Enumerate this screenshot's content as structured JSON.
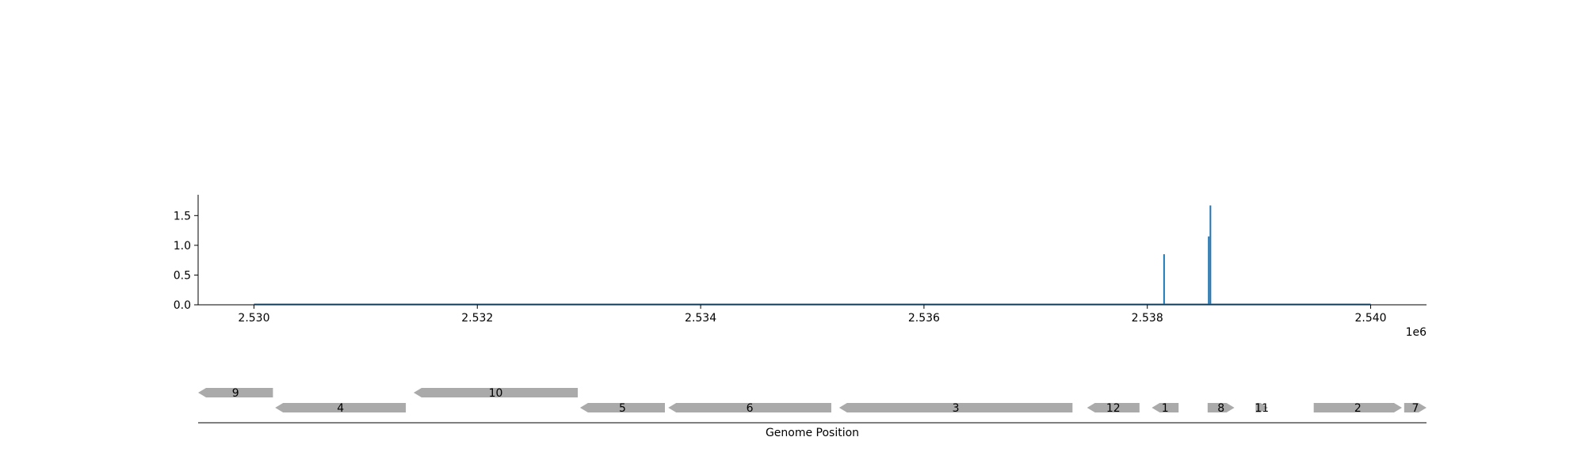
{
  "chart_data": [
    {
      "type": "line",
      "title": "",
      "xlabel": "",
      "ylabel": "",
      "xlim": [
        2529500,
        2540500
      ],
      "ylim": [
        0,
        1.85
      ],
      "x_offset_label": "1e6",
      "x_ticks": [
        {
          "value": 2530000,
          "label": "2.530"
        },
        {
          "value": 2532000,
          "label": "2.532"
        },
        {
          "value": 2534000,
          "label": "2.534"
        },
        {
          "value": 2536000,
          "label": "2.536"
        },
        {
          "value": 2538000,
          "label": "2.538"
        },
        {
          "value": 2540000,
          "label": "2.540"
        }
      ],
      "y_ticks": [
        {
          "value": 0.0,
          "label": "0.0"
        },
        {
          "value": 0.5,
          "label": "0.5"
        },
        {
          "value": 1.0,
          "label": "1.0"
        },
        {
          "value": 1.5,
          "label": "1.5"
        }
      ],
      "series": [
        {
          "color": "#1f77b4",
          "baseline_range": [
            2530000,
            2540000
          ],
          "peaks": [
            {
              "x": 2538150,
              "y": 0.85
            },
            {
              "x": 2538550,
              "y": 1.15
            },
            {
              "x": 2538565,
              "y": 1.67
            }
          ]
        }
      ],
      "grid": false
    },
    {
      "type": "gene_track",
      "xlabel": "Genome Position",
      "xlim": [
        2529500,
        2540500
      ],
      "feature_color": "#aaaaaa",
      "genes": [
        {
          "label": "9",
          "start": 2529500,
          "end": 2530170,
          "strand": "-",
          "row": 1
        },
        {
          "label": "4",
          "start": 2530190,
          "end": 2531360,
          "strand": "-",
          "row": 0
        },
        {
          "label": "10",
          "start": 2531430,
          "end": 2532900,
          "strand": "-",
          "row": 1
        },
        {
          "label": "5",
          "start": 2532920,
          "end": 2533680,
          "strand": "-",
          "row": 0
        },
        {
          "label": "6",
          "start": 2533710,
          "end": 2535170,
          "strand": "-",
          "row": 0
        },
        {
          "label": "3",
          "start": 2535240,
          "end": 2537330,
          "strand": "-",
          "row": 0
        },
        {
          "label": "12",
          "start": 2537460,
          "end": 2537930,
          "strand": "-",
          "row": 0
        },
        {
          "label": "1",
          "start": 2538040,
          "end": 2538280,
          "strand": "-",
          "row": 0
        },
        {
          "label": "8",
          "start": 2538540,
          "end": 2538780,
          "strand": "+",
          "row": 0
        },
        {
          "label": "11",
          "start": 2538970,
          "end": 2539080,
          "strand": "+",
          "row": 0
        },
        {
          "label": "2",
          "start": 2539490,
          "end": 2540280,
          "strand": "+",
          "row": 0
        },
        {
          "label": "7",
          "start": 2540300,
          "end": 2540500,
          "strand": "+",
          "row": 0
        }
      ]
    }
  ]
}
